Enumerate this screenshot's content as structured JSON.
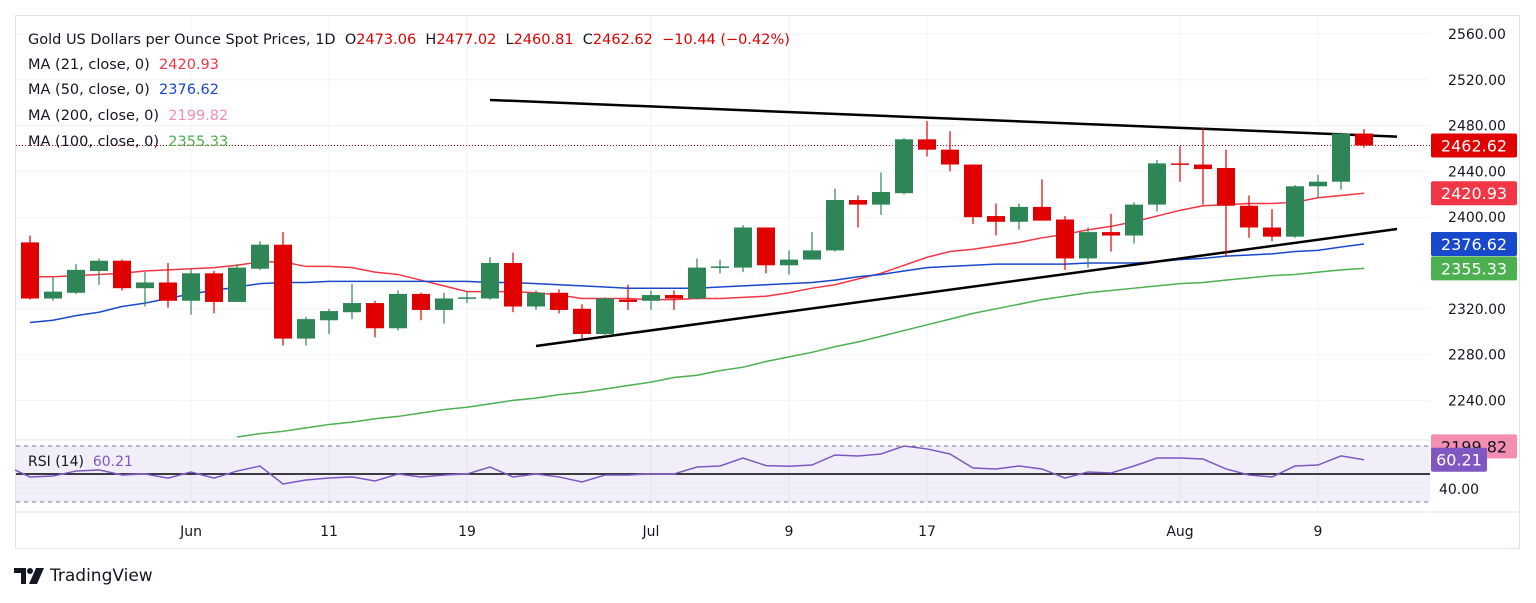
{
  "header": {
    "symbol": "Gold US Dollars per Ounce Spot Prices, 1D",
    "open_label": "O",
    "open": "2473.06",
    "high_label": "H",
    "high": "2477.02",
    "low_label": "L",
    "low": "2460.81",
    "close_label": "C",
    "close": "2462.62",
    "change": "−10.44 (−0.42%)"
  },
  "indicators": [
    {
      "label": "MA (21, close, 0)",
      "value": "2420.93",
      "color": "#f23645"
    },
    {
      "label": "MA (50, close, 0)",
      "value": "2376.62",
      "color": "#1848cc"
    },
    {
      "label": "MA (200, close, 0)",
      "value": "2199.82",
      "color": "#f48fb1"
    },
    {
      "label": "MA (100, close, 0)",
      "value": "2355.33",
      "color": "#4caf50"
    }
  ],
  "rsi": {
    "label": "RSI (14)",
    "value": "60.21",
    "color": "#7e57c2",
    "level_label": "40.00"
  },
  "branding": {
    "name": "TradingView"
  },
  "colors": {
    "up": "#2e8555",
    "down": "#e00000",
    "last_price": "#e00000",
    "trendline": "#000000"
  },
  "chart_data": {
    "type": "candlestick",
    "title": "Gold US Dollars per Ounce Spot Prices, 1D",
    "ylim": [
      2190,
      2575
    ],
    "y_ticks": [
      "2560.00",
      "2520.00",
      "2480.00",
      "2440.00",
      "2400.00",
      "2320.00",
      "2280.00",
      "2240.00"
    ],
    "x_tick_labels": [
      {
        "label": "Jun",
        "date": "Jun 3"
      },
      {
        "label": "11",
        "date": "Jun 11"
      },
      {
        "label": "19",
        "date": "Jun 19"
      },
      {
        "label": "Jul",
        "date": "Jul 1"
      },
      {
        "label": "9",
        "date": "Jul 9"
      },
      {
        "label": "17",
        "date": "Jul 17"
      },
      {
        "label": "Aug",
        "date": "Aug 1"
      },
      {
        "label": "9",
        "date": "Aug 9"
      }
    ],
    "grid": true,
    "dates": [
      "May 23",
      "May 24",
      "May 27",
      "May 28",
      "May 29",
      "May 30",
      "May 31",
      "Jun 3",
      "Jun 4",
      "Jun 5",
      "Jun 6",
      "Jun 7",
      "Jun 10",
      "Jun 11",
      "Jun 12",
      "Jun 13",
      "Jun 14",
      "Jun 17",
      "Jun 18",
      "Jun 19",
      "Jun 20",
      "Jun 21",
      "Jun 24",
      "Jun 25",
      "Jun 26",
      "Jun 27",
      "Jun 28",
      "Jul 1",
      "Jul 2",
      "Jul 3",
      "Jul 4",
      "Jul 5",
      "Jul 8",
      "Jul 9",
      "Jul 10",
      "Jul 11",
      "Jul 12",
      "Jul 15",
      "Jul 16",
      "Jul 17",
      "Jul 18",
      "Jul 19",
      "Jul 22",
      "Jul 23",
      "Jul 24",
      "Jul 25",
      "Jul 26",
      "Jul 29",
      "Jul 30",
      "Jul 31",
      "Aug 1",
      "Aug 2",
      "Aug 5",
      "Aug 6",
      "Aug 7",
      "Aug 8",
      "Aug 9",
      "Aug 12",
      "Aug 13"
    ],
    "ohlc": [
      [
        2378,
        2384,
        2328,
        2329
      ],
      [
        2329,
        2348,
        2327,
        2335
      ],
      [
        2334,
        2359,
        2333,
        2354
      ],
      [
        2353,
        2364,
        2341,
        2362
      ],
      [
        2362,
        2363,
        2336,
        2338
      ],
      [
        2338,
        2352,
        2322,
        2343
      ],
      [
        2343,
        2360,
        2321,
        2327
      ],
      [
        2327,
        2355,
        2315,
        2351
      ],
      [
        2351,
        2353,
        2316,
        2326
      ],
      [
        2326,
        2359,
        2326,
        2356
      ],
      [
        2355,
        2379,
        2354,
        2376
      ],
      [
        2376,
        2387,
        2288,
        2294
      ],
      [
        2294,
        2313,
        2288,
        2311
      ],
      [
        2310,
        2320,
        2298,
        2318
      ],
      [
        2317,
        2342,
        2311,
        2325
      ],
      [
        2325,
        2327,
        2295,
        2303
      ],
      [
        2303,
        2336,
        2301,
        2333
      ],
      [
        2333,
        2334,
        2310,
        2319
      ],
      [
        2319,
        2334,
        2307,
        2329
      ],
      [
        2329,
        2335,
        2325,
        2330
      ],
      [
        2329,
        2365,
        2328,
        2360
      ],
      [
        2360,
        2369,
        2317,
        2322
      ],
      [
        2322,
        2336,
        2319,
        2334
      ],
      [
        2334,
        2337,
        2316,
        2319
      ],
      [
        2320,
        2324,
        2294,
        2298
      ],
      [
        2298,
        2330,
        2296,
        2329
      ],
      [
        2328,
        2341,
        2319,
        2326
      ],
      [
        2327,
        2336,
        2319,
        2332
      ],
      [
        2332,
        2336,
        2319,
        2329
      ],
      [
        2329,
        2364,
        2328,
        2356
      ],
      [
        2356,
        2363,
        2351,
        2357
      ],
      [
        2356,
        2393,
        2352,
        2391
      ],
      [
        2391,
        2391,
        2351,
        2358
      ],
      [
        2358,
        2371,
        2350,
        2363
      ],
      [
        2363,
        2387,
        2363,
        2371
      ],
      [
        2371,
        2425,
        2370,
        2415
      ],
      [
        2415,
        2419,
        2391,
        2411
      ],
      [
        2411,
        2439,
        2402,
        2422
      ],
      [
        2421,
        2469,
        2420,
        2468
      ],
      [
        2468,
        2484,
        2453,
        2459
      ],
      [
        2459,
        2475,
        2440,
        2446
      ],
      [
        2446,
        2446,
        2394,
        2400
      ],
      [
        2401,
        2412,
        2384,
        2396
      ],
      [
        2396,
        2412,
        2389,
        2409
      ],
      [
        2409,
        2433,
        2397,
        2397
      ],
      [
        2398,
        2401,
        2354,
        2364
      ],
      [
        2364,
        2391,
        2356,
        2387
      ],
      [
        2387,
        2403,
        2370,
        2384
      ],
      [
        2384,
        2413,
        2377,
        2411
      ],
      [
        2411,
        2450,
        2405,
        2447
      ],
      [
        2447,
        2462,
        2431,
        2446
      ],
      [
        2446,
        2478,
        2411,
        2442
      ],
      [
        2443,
        2459,
        2366,
        2410
      ],
      [
        2410,
        2419,
        2382,
        2391
      ],
      [
        2391,
        2407,
        2379,
        2383
      ],
      [
        2383,
        2428,
        2382,
        2427
      ],
      [
        2427,
        2437,
        2417,
        2431
      ],
      [
        2431,
        2474,
        2424,
        2473
      ],
      [
        2473.06,
        2477.02,
        2460.81,
        2462.62
      ]
    ],
    "series": [
      {
        "name": "MA (21, close, 0)",
        "color": "#f23645",
        "values": [
          2348,
          2348,
          2349,
          2350,
          2351,
          2353,
          2354,
          2355,
          2356,
          2358,
          2361,
          2361,
          2357,
          2357,
          2356,
          2352,
          2350,
          2345,
          2340,
          2335,
          2335,
          2335,
          2334,
          2332,
          2329,
          2329,
          2329,
          2328,
          2328,
          2329,
          2329,
          2330,
          2331,
          2334,
          2338,
          2341,
          2346,
          2351,
          2358,
          2365,
          2370,
          2372,
          2375,
          2378,
          2382,
          2385,
          2389,
          2392,
          2396,
          2401,
          2406,
          2410,
          2411,
          2412,
          2412,
          2413,
          2417,
          2419,
          2420.93
        ]
      },
      {
        "name": "MA (50, close, 0)",
        "color": "#1848cc",
        "values": [
          2308,
          2310,
          2314,
          2317,
          2322,
          2325,
          2329,
          2333,
          2336,
          2339,
          2342,
          2343,
          2343,
          2344,
          2344,
          2344,
          2344,
          2344,
          2344,
          2344,
          2343,
          2343,
          2342,
          2341,
          2340,
          2339,
          2338,
          2338,
          2338,
          2338,
          2339,
          2340,
          2341,
          2342,
          2343,
          2345,
          2348,
          2350,
          2353,
          2356,
          2357,
          2358,
          2359,
          2359,
          2359,
          2359,
          2360,
          2360,
          2360,
          2361,
          2363,
          2364,
          2366,
          2367,
          2368,
          2370,
          2371,
          2374,
          2376.62
        ]
      },
      {
        "name": "MA (100, close, 0)",
        "color": "#4caf50",
        "values": [
          null,
          null,
          null,
          null,
          null,
          null,
          null,
          null,
          null,
          2208,
          2211,
          2213,
          2216,
          2219,
          2221,
          2224,
          2226,
          2229,
          2232,
          2234,
          2237,
          2240,
          2242,
          2245,
          2247,
          2250,
          2253,
          2256,
          2260,
          2262,
          2266,
          2269,
          2274,
          2278,
          2282,
          2287,
          2291,
          2296,
          2301,
          2306,
          2311,
          2316,
          2320,
          2324,
          2328,
          2331,
          2334,
          2336,
          2338,
          2340,
          2342,
          2343,
          2345,
          2347,
          2349,
          2350,
          2352,
          2354,
          2355.33
        ]
      }
    ],
    "trendlines": [
      {
        "from": {
          "date": "Jun 20",
          "price": 2502.4
        },
        "to": {
          "date": "Aug 15",
          "price": 2470.4
        }
      },
      {
        "from": {
          "date": "Jun 24",
          "price": 2287.5
        },
        "to": {
          "date": "Aug 15",
          "price": 2389.7
        }
      }
    ],
    "price_labels": [
      {
        "value": "2462.62",
        "color": "#e00000",
        "text_color": "#ffffff"
      },
      {
        "value": "2420.93",
        "color": "#f23645",
        "text_color": "#ffffff"
      },
      {
        "value": "2376.62",
        "color": "#1848cc",
        "text_color": "#ffffff"
      },
      {
        "value": "2355.33",
        "color": "#4caf50",
        "text_color": "#ffffff"
      },
      {
        "value": "2199.82",
        "color": "#f48fb1",
        "text_color": "#131722"
      }
    ],
    "rsi_panel": {
      "name": "RSI (14)",
      "ylim": [
        30,
        70
      ],
      "bands": [
        70,
        30
      ],
      "midline": 50,
      "values": [
        47.9,
        48.6,
        52.1,
        52.9,
        49.3,
        50,
        47.1,
        51.4,
        47.1,
        52.1,
        55.7,
        42.9,
        45.7,
        47.1,
        47.9,
        45,
        50,
        47.9,
        49.3,
        50,
        55,
        47.9,
        50,
        47.9,
        44.3,
        49.3,
        49.3,
        50,
        50,
        55,
        55.7,
        61.4,
        56,
        55.5,
        56.4,
        63.6,
        62.9,
        64.3,
        70,
        67.9,
        64.3,
        54.3,
        53.6,
        55.7,
        53.6,
        47.1,
        51.4,
        50.7,
        55.7,
        61.4,
        61.4,
        60.7,
        53.6,
        49.3,
        47.9,
        55.7,
        56.4,
        62.9,
        60.21
      ]
    }
  }
}
